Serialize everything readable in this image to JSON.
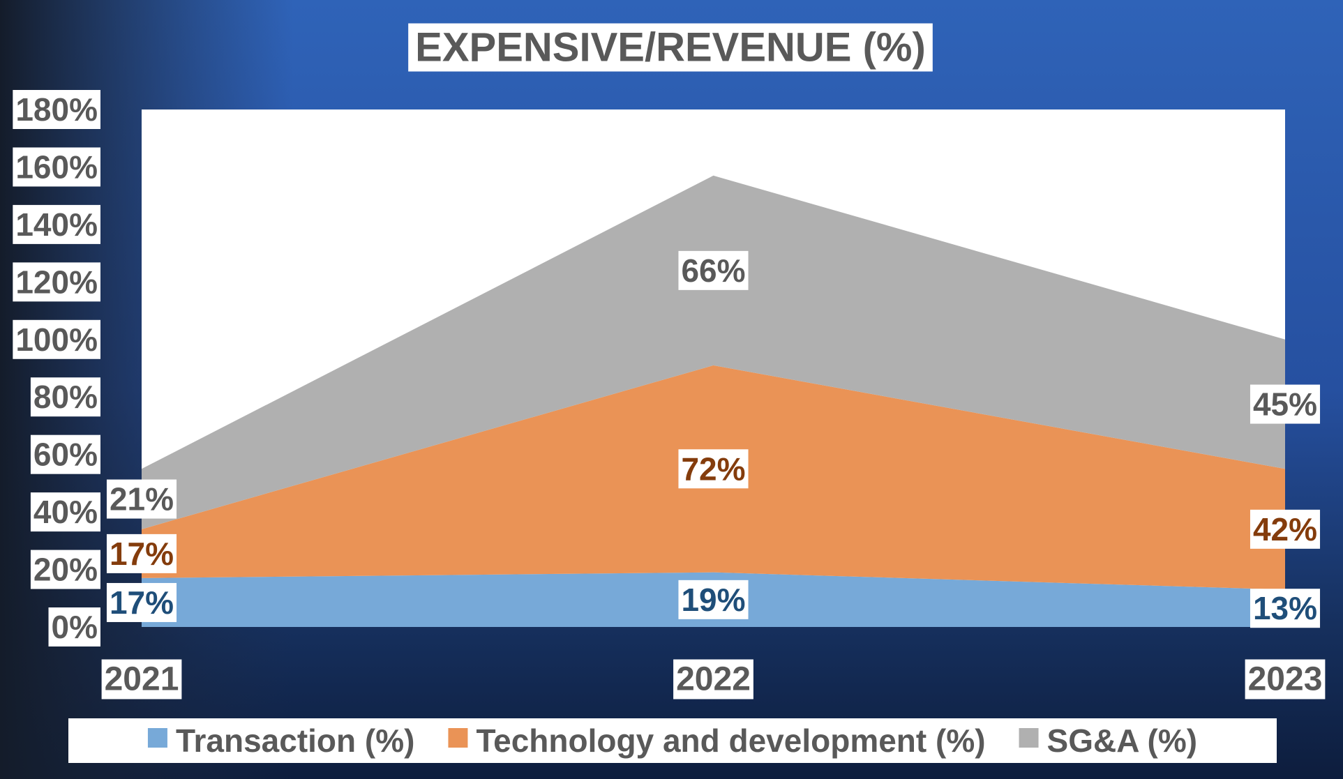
{
  "chart_data": {
    "type": "stacked-area",
    "title": "EXPENSIVE/REVENUE (%)",
    "categories": [
      "2021",
      "2022",
      "2023"
    ],
    "series": [
      {
        "name": "Transaction (%)",
        "color": "#77a9d8",
        "label_color": "#1f4e79",
        "values": [
          17,
          19,
          13
        ],
        "value_labels": [
          "17%",
          "19%",
          "13%"
        ]
      },
      {
        "name": "Technology and development (%)",
        "color": "#ea9356",
        "label_color": "#843c0c",
        "values": [
          17,
          72,
          42
        ],
        "value_labels": [
          "17%",
          "72%",
          "42%"
        ]
      },
      {
        "name": "SG&A (%)",
        "color": "#b0b0b0",
        "label_color": "#595959",
        "values": [
          21,
          66,
          45
        ],
        "value_labels": [
          "21%",
          "66%",
          "45%"
        ]
      }
    ],
    "ylim": [
      0,
      180
    ],
    "yticks": [
      {
        "value": 0,
        "label": "0%"
      },
      {
        "value": 20,
        "label": "20%"
      },
      {
        "value": 40,
        "label": "40%"
      },
      {
        "value": 60,
        "label": "60%"
      },
      {
        "value": 80,
        "label": "80%"
      },
      {
        "value": 100,
        "label": "100%"
      },
      {
        "value": 120,
        "label": "120%"
      },
      {
        "value": 140,
        "label": "140%"
      },
      {
        "value": 160,
        "label": "160%"
      },
      {
        "value": 180,
        "label": "180%"
      }
    ],
    "legend": "bottom"
  }
}
